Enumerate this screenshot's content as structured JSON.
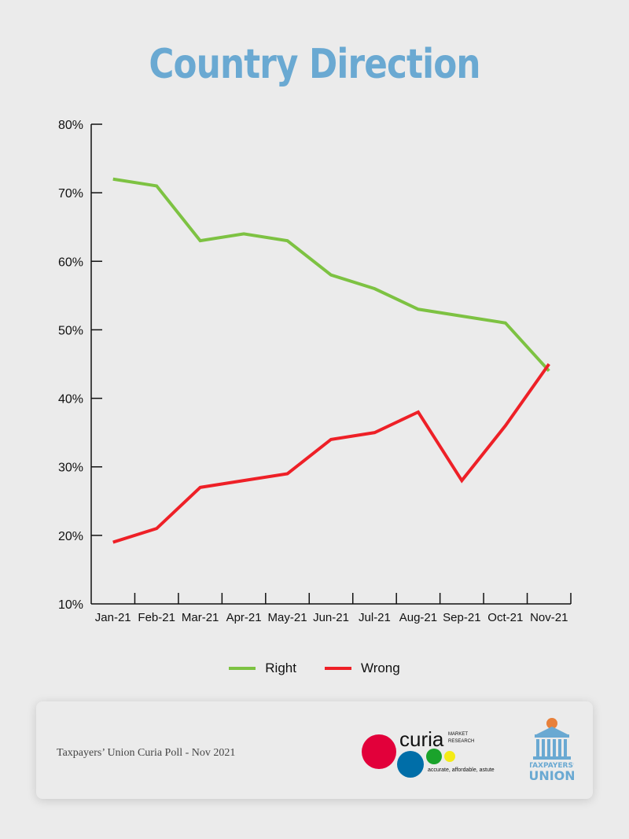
{
  "title": "Country Direction",
  "chart_data": {
    "type": "line",
    "title": "Country Direction",
    "xlabel": "",
    "ylabel": "",
    "categories": [
      "Jan-21",
      "Feb-21",
      "Mar-21",
      "Apr-21",
      "May-21",
      "Jun-21",
      "Jul-21",
      "Aug-21",
      "Sep-21",
      "Oct-21",
      "Nov-21"
    ],
    "ylim": [
      10,
      80
    ],
    "yticks": [
      "10%",
      "20%",
      "30%",
      "40%",
      "50%",
      "60%",
      "70%",
      "80%"
    ],
    "series": [
      {
        "name": "Right",
        "color": "#7dc242",
        "values": [
          72,
          71,
          63,
          64,
          63,
          58,
          56,
          53,
          52,
          51,
          44
        ]
      },
      {
        "name": "Wrong",
        "color": "#ee2027",
        "values": [
          19,
          21,
          27,
          28,
          29,
          34,
          35,
          38,
          28,
          36,
          45
        ]
      }
    ],
    "legend_position": "bottom-center",
    "grid": false
  },
  "legend": [
    {
      "label": "Right",
      "color": "#7dc242"
    },
    {
      "label": "Wrong",
      "color": "#ee2027"
    }
  ],
  "footer": {
    "source": "Taxpayers’ Union Curia Poll - Nov 2021",
    "curia": {
      "name": "curia",
      "sub1": "MARKET",
      "sub2": "RESEARCH",
      "tagline": "accurate, affordable, astute"
    },
    "tu": {
      "line1": "TAXPAYERS’",
      "line2": "UNION"
    }
  }
}
